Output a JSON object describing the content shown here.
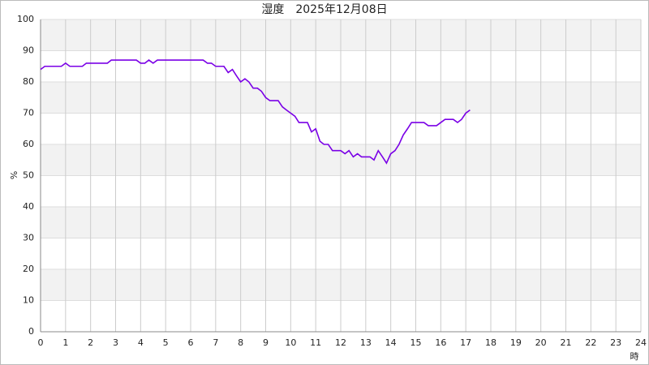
{
  "chart_data": {
    "type": "line",
    "title": "湿度　2025年12月08日",
    "y_label": "%",
    "x_label": "時",
    "x": [
      0,
      0.17,
      0.33,
      0.5,
      0.67,
      0.83,
      1.0,
      1.17,
      1.33,
      1.5,
      1.67,
      1.83,
      2.0,
      2.17,
      2.33,
      2.5,
      2.67,
      2.83,
      3.0,
      3.17,
      3.33,
      3.5,
      3.67,
      3.83,
      4.0,
      4.17,
      4.33,
      4.5,
      4.67,
      4.83,
      5.0,
      5.5,
      6.0,
      6.5,
      6.67,
      6.83,
      7.0,
      7.17,
      7.33,
      7.5,
      7.67,
      7.83,
      8.0,
      8.17,
      8.33,
      8.5,
      8.67,
      8.83,
      9.0,
      9.17,
      9.33,
      9.5,
      9.67,
      9.83,
      10.0,
      10.17,
      10.33,
      10.5,
      10.67,
      10.83,
      11.0,
      11.17,
      11.33,
      11.5,
      11.67,
      11.83,
      12.0,
      12.17,
      12.33,
      12.5,
      12.67,
      12.83,
      13.0,
      13.17,
      13.33,
      13.5,
      13.67,
      13.83,
      14.0,
      14.17,
      14.33,
      14.5,
      14.67,
      14.83,
      15.0,
      15.17,
      15.33,
      15.5,
      15.67,
      15.83,
      16.0,
      16.17,
      16.33,
      16.5,
      16.67,
      16.83,
      17.0,
      17.17
    ],
    "series": [
      {
        "name": "湿度",
        "color": "#7a00e6",
        "values": [
          84,
          85,
          85,
          85,
          85,
          85,
          86,
          85,
          85,
          85,
          85,
          86,
          86,
          86,
          86,
          86,
          86,
          87,
          87,
          87,
          87,
          87,
          87,
          87,
          86,
          86,
          87,
          86,
          87,
          87,
          87,
          87,
          87,
          87,
          86,
          86,
          85,
          85,
          85,
          83,
          84,
          82,
          80,
          81,
          80,
          78,
          78,
          77,
          75,
          74,
          74,
          74,
          72,
          71,
          70,
          69,
          67,
          67,
          67,
          64,
          65,
          61,
          60,
          60,
          58,
          58,
          58,
          57,
          58,
          56,
          57,
          56,
          56,
          56,
          55,
          58,
          56,
          54,
          57,
          58,
          60,
          63,
          65,
          67,
          67,
          67,
          67,
          66,
          66,
          66,
          67,
          68,
          68,
          68,
          67,
          68,
          70,
          71
        ]
      }
    ],
    "xlim": [
      0,
      24
    ],
    "xticks": [
      0,
      1,
      2,
      3,
      4,
      5,
      6,
      7,
      8,
      9,
      10,
      11,
      12,
      13,
      14,
      15,
      16,
      17,
      18,
      19,
      20,
      21,
      22,
      23,
      24
    ],
    "ylim": [
      0,
      100
    ],
    "yticks": [
      0,
      10,
      20,
      30,
      40,
      50,
      60,
      70,
      80,
      90,
      100
    ],
    "grid": true
  }
}
